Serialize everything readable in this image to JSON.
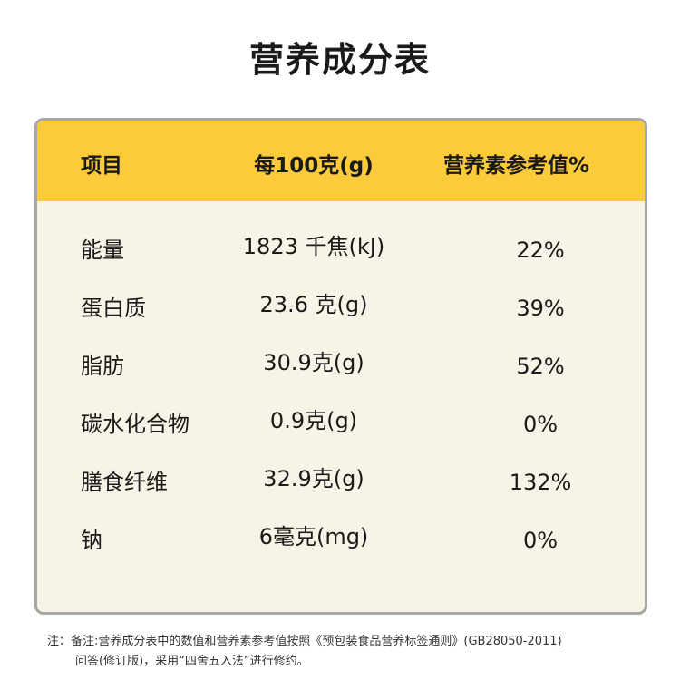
{
  "title": "营养成分表",
  "table": {
    "headers": [
      "项目",
      "每100克(g)",
      "营养素参考值%"
    ],
    "rows": [
      {
        "name": "能量",
        "amount": "1823 千焦(kJ)",
        "nrv": "22%"
      },
      {
        "name": "蛋白质",
        "amount": "23.6 克(g)",
        "nrv": "39%"
      },
      {
        "name": "脂肪",
        "amount": "30.9克(g)",
        "nrv": "52%"
      },
      {
        "name": "碳水化合物",
        "amount": "0.9克(g)",
        "nrv": "0%"
      },
      {
        "name": "膳食纤维",
        "amount": "32.9克(g)",
        "nrv": "132%"
      },
      {
        "name": "钠",
        "amount": "6毫克(mg)",
        "nrv": "0%"
      }
    ]
  },
  "note": {
    "line1": "注：备注:营养成分表中的数值和营养素参考值按照《预包装食品营养标签通则》(GB28050-2011)",
    "line2": "问答(修订版)，采用“四舍五入法”进行修约。"
  },
  "colors": {
    "header_bg": "#fbcb3c",
    "panel_bg": "#f7f3e6",
    "border": "#a7a7a7"
  }
}
